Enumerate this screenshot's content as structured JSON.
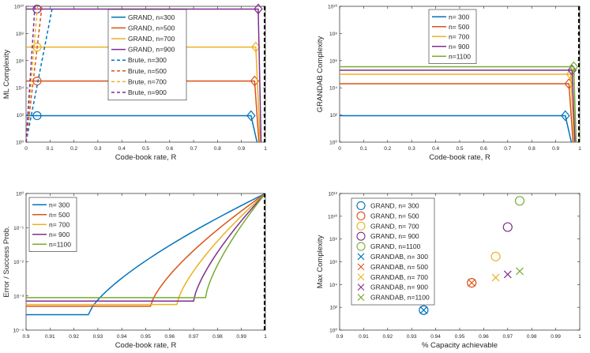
{
  "colors": {
    "blue": "#0072BD",
    "orange": "#D95319",
    "yellow": "#EDB120",
    "purple": "#7E2F8E",
    "green": "#77AC30",
    "axis": "#262626",
    "capacity_line": "#000000"
  },
  "chart_data": [
    {
      "type": "line",
      "ylabel": "ML Complexity",
      "xlabel": "Code-book rate, R",
      "xlim": [
        0,
        1
      ],
      "ylim_log10": [
        0,
        10
      ],
      "yscale": "log",
      "xticks": [
        "0",
        "0.1",
        "0.2",
        "0.3",
        "0.4",
        "0.5",
        "0.6",
        "0.7",
        "0.8",
        "0.9",
        "1"
      ],
      "yticks": [
        "10⁰",
        "10²",
        "10⁴",
        "10⁶",
        "10⁸",
        "10¹⁰"
      ],
      "legend_position": "top-center",
      "capacity_x": 1.0,
      "series": [
        {
          "name": "GRAND, n=300",
          "color": "blue",
          "style": "solid",
          "level_log10": 1.95,
          "drop_start": 0.94,
          "drop_end": 0.965,
          "marker_start": 0.046,
          "marker_end": 0.94
        },
        {
          "name": "GRAND, n=500",
          "color": "orange",
          "style": "solid",
          "level_log10": 4.5,
          "drop_start": 0.955,
          "drop_end": 0.973,
          "marker_start": 0.046,
          "marker_end": 0.955
        },
        {
          "name": "GRAND, n=700",
          "color": "yellow",
          "style": "solid",
          "level_log10": 7.0,
          "drop_start": 0.96,
          "drop_end": 0.978,
          "marker_start": 0.046,
          "marker_end": 0.96
        },
        {
          "name": "GRAND, n=900",
          "color": "purple",
          "style": "solid",
          "level_log10": 9.8,
          "drop_start": 0.97,
          "drop_end": 0.982,
          "marker_start": 0.046,
          "marker_end": 0.97
        },
        {
          "name": "Brute, n=300",
          "color": "blue",
          "style": "dashed",
          "slope_log10_per_rate": 90.3
        },
        {
          "name": "Brute, n=500",
          "color": "orange",
          "style": "dashed",
          "slope_log10_per_rate": 150.5
        },
        {
          "name": "Brute, n=700",
          "color": "yellow",
          "style": "dashed",
          "slope_log10_per_rate": 210.7
        },
        {
          "name": "Brute, n=900",
          "color": "purple",
          "style": "dashed",
          "slope_log10_per_rate": 270.9
        }
      ]
    },
    {
      "type": "line",
      "ylabel": "GRANDAB Complexity",
      "xlabel": "Code-book rate, R",
      "xlim": [
        0,
        1
      ],
      "ylim_log10": [
        0,
        10
      ],
      "yscale": "log",
      "xticks": [
        "0",
        "0.1",
        "0.2",
        "0.3",
        "0.4",
        "0.5",
        "0.6",
        "0.7",
        "0.8",
        "0.9",
        "1"
      ],
      "yticks": [
        "10⁰",
        "10²",
        "10⁴",
        "10⁶",
        "10⁸",
        "10¹⁰"
      ],
      "legend_position": "top-center",
      "capacity_x": 1.0,
      "series": [
        {
          "name": "n= 300",
          "color": "blue",
          "level_log10": 1.95,
          "drop_start": 0.94,
          "drop_end": 0.965,
          "marker": 0.94
        },
        {
          "name": "n= 500",
          "color": "orange",
          "level_log10": 4.3,
          "drop_start": 0.955,
          "drop_end": 0.972,
          "marker": 0.955
        },
        {
          "name": "n= 700",
          "color": "yellow",
          "level_log10": 5.0,
          "drop_start": 0.962,
          "drop_end": 0.977,
          "marker": 0.962
        },
        {
          "name": "n= 900",
          "color": "purple",
          "level_log10": 5.3,
          "drop_start": 0.968,
          "drop_end": 0.98,
          "marker": 0.968
        },
        {
          "name": "n=1100",
          "color": "green",
          "level_log10": 5.55,
          "drop_start": 0.975,
          "drop_end": 0.985,
          "marker": 0.975
        }
      ]
    },
    {
      "type": "line",
      "ylabel": "Error / Success Prob.",
      "xlabel": "Code-book rate, R",
      "xlim": [
        0.9,
        1.0
      ],
      "ylim_log10": [
        -4,
        0
      ],
      "yscale": "log",
      "xticks": [
        "0.9",
        "0.91",
        "0.92",
        "0.93",
        "0.94",
        "0.95",
        "0.96",
        "0.97",
        "0.98",
        "0.99",
        "1"
      ],
      "yticks": [
        "10⁻⁴",
        "10⁻³",
        "10⁻²",
        "10⁻¹",
        "10⁰"
      ],
      "legend_position": "top-left",
      "capacity_x": 1.0,
      "series": [
        {
          "name": "n= 300",
          "color": "blue",
          "floor_log10": -3.55,
          "knee": 0.926
        },
        {
          "name": "n= 500",
          "color": "orange",
          "floor_log10": -3.3,
          "knee": 0.952
        },
        {
          "name": "n= 700",
          "color": "yellow",
          "floor_log10": -3.25,
          "knee": 0.963
        },
        {
          "name": "n= 900",
          "color": "purple",
          "floor_log10": -3.15,
          "knee": 0.97
        },
        {
          "name": "n=1100",
          "color": "green",
          "floor_log10": -3.05,
          "knee": 0.975
        }
      ]
    },
    {
      "type": "scatter",
      "ylabel": "Max Complexity",
      "xlabel": "% Capacity achievable",
      "xlim": [
        0.9,
        1.0
      ],
      "ylim_log10": [
        0,
        13
      ],
      "yscale": "log",
      "xticks": [
        "0.9",
        "0.91",
        "0.92",
        "0.93",
        "0.94",
        "0.95",
        "0.96",
        "0.97",
        "0.98",
        "0.99",
        "1"
      ],
      "yticks": [
        "10⁰",
        "10²",
        "10⁴",
        "10⁶",
        "10⁸",
        "10¹⁰",
        "10¹²"
      ],
      "legend_position": "left",
      "series": [
        {
          "name": "GRAND, n= 300",
          "color": "blue",
          "marker": "circle",
          "x": 0.935,
          "y_log10": 1.9
        },
        {
          "name": "GRAND, n= 500",
          "color": "orange",
          "marker": "circle",
          "x": 0.955,
          "y_log10": 4.5
        },
        {
          "name": "GRAND, n= 700",
          "color": "yellow",
          "marker": "circle",
          "x": 0.965,
          "y_log10": 7.0
        },
        {
          "name": "GRAND, n= 900",
          "color": "purple",
          "marker": "circle",
          "x": 0.97,
          "y_log10": 9.8
        },
        {
          "name": "GRAND, n=1100",
          "color": "green",
          "marker": "circle",
          "x": 0.975,
          "y_log10": 12.3
        },
        {
          "name": "GRANDAB, n= 300",
          "color": "blue",
          "marker": "x",
          "x": 0.935,
          "y_log10": 1.9
        },
        {
          "name": "GRANDAB, n= 500",
          "color": "orange",
          "marker": "x",
          "x": 0.955,
          "y_log10": 4.5
        },
        {
          "name": "GRANDAB, n= 700",
          "color": "yellow",
          "marker": "x",
          "x": 0.965,
          "y_log10": 5.0
        },
        {
          "name": "GRANDAB, n= 900",
          "color": "purple",
          "marker": "x",
          "x": 0.97,
          "y_log10": 5.3
        },
        {
          "name": "GRANDAB, n=1100",
          "color": "green",
          "marker": "x",
          "x": 0.975,
          "y_log10": 5.6
        }
      ]
    }
  ]
}
